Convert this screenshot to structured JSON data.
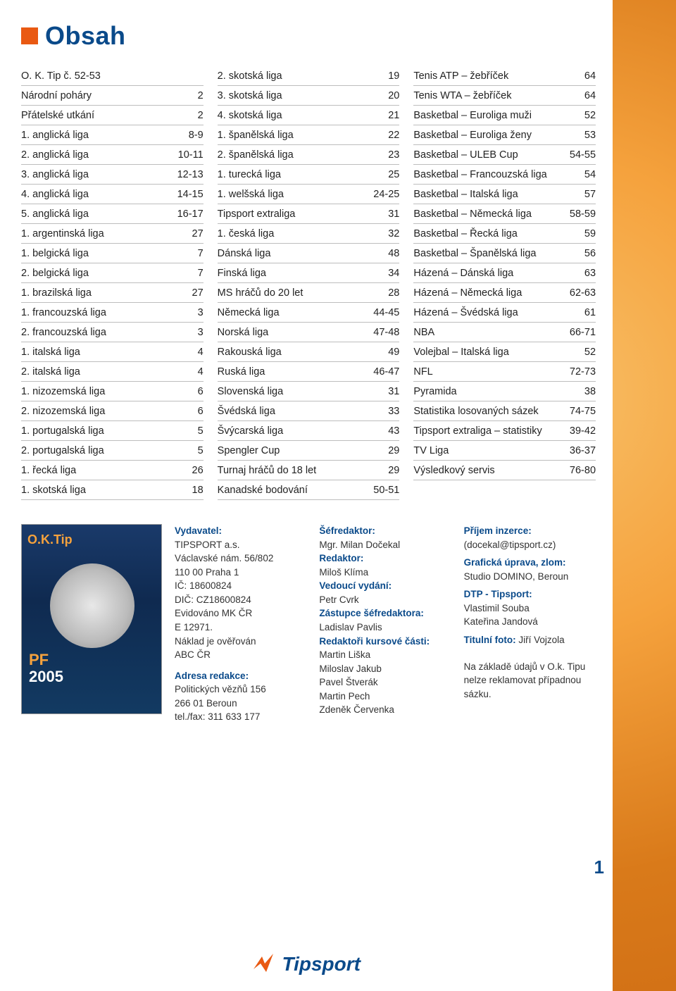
{
  "title": "Obsah",
  "columns": [
    [
      {
        "label": "O. K. Tip č. 52-53",
        "page": ""
      },
      {
        "label": "Národní poháry",
        "page": "2"
      },
      {
        "label": "Přátelské utkání",
        "page": "2"
      },
      {
        "label": "1. anglická liga",
        "page": "8-9"
      },
      {
        "label": "2. anglická liga",
        "page": "10-11"
      },
      {
        "label": "3. anglická liga",
        "page": "12-13"
      },
      {
        "label": "4. anglická liga",
        "page": "14-15"
      },
      {
        "label": "5. anglická liga",
        "page": "16-17"
      },
      {
        "label": "1. argentinská liga",
        "page": "27"
      },
      {
        "label": "1. belgická liga",
        "page": "7"
      },
      {
        "label": "2. belgická liga",
        "page": "7"
      },
      {
        "label": "1. brazilská liga",
        "page": "27"
      },
      {
        "label": "1. francouzská liga",
        "page": "3"
      },
      {
        "label": "2. francouzská liga",
        "page": "3"
      },
      {
        "label": "1. italská liga",
        "page": "4"
      },
      {
        "label": "2. italská liga",
        "page": "4"
      },
      {
        "label": "1. nizozemská liga",
        "page": "6"
      },
      {
        "label": "2. nizozemská liga",
        "page": "6"
      },
      {
        "label": "1. portugalská liga",
        "page": "5"
      },
      {
        "label": "2. portugalská liga",
        "page": "5"
      },
      {
        "label": "1. řecká liga",
        "page": "26"
      },
      {
        "label": "1. skotská liga",
        "page": "18"
      }
    ],
    [
      {
        "label": "2. skotská liga",
        "page": "19"
      },
      {
        "label": "3. skotská liga",
        "page": "20"
      },
      {
        "label": "4. skotská liga",
        "page": "21"
      },
      {
        "label": "1. španělská liga",
        "page": "22"
      },
      {
        "label": "2. španělská liga",
        "page": "23"
      },
      {
        "label": "1. turecká liga",
        "page": "25"
      },
      {
        "label": "1. welšská liga",
        "page": "24-25"
      },
      {
        "label": "Tipsport extraliga",
        "page": "31"
      },
      {
        "label": "1. česká liga",
        "page": "32"
      },
      {
        "label": "Dánská liga",
        "page": "48"
      },
      {
        "label": "Finská liga",
        "page": "34"
      },
      {
        "label": "MS hráčů do 20 let",
        "page": "28"
      },
      {
        "label": "Německá liga",
        "page": "44-45"
      },
      {
        "label": "Norská liga",
        "page": "47-48"
      },
      {
        "label": "Rakouská liga",
        "page": "49"
      },
      {
        "label": "Ruská liga",
        "page": "46-47"
      },
      {
        "label": "Slovenská liga",
        "page": "31"
      },
      {
        "label": "Švédská liga",
        "page": "33"
      },
      {
        "label": "Švýcarská liga",
        "page": "43"
      },
      {
        "label": "Spengler Cup",
        "page": "29"
      },
      {
        "label": "Turnaj hráčů do 18 let",
        "page": "29"
      },
      {
        "label": "Kanadské bodování",
        "page": "50-51"
      }
    ],
    [
      {
        "label": "Tenis ATP – žebříček",
        "page": "64"
      },
      {
        "label": "Tenis WTA – žebříček",
        "page": "64"
      },
      {
        "label": "Basketbal – Euroliga muži",
        "page": "52"
      },
      {
        "label": "Basketbal – Euroliga ženy",
        "page": "53"
      },
      {
        "label": "Basketbal – ULEB Cup",
        "page": "54-55"
      },
      {
        "label": "Basketbal – Francouzská liga",
        "page": "54"
      },
      {
        "label": "Basketbal – Italská liga",
        "page": "57"
      },
      {
        "label": "Basketbal – Německá liga",
        "page": "58-59"
      },
      {
        "label": "Basketbal – Řecká liga",
        "page": "59"
      },
      {
        "label": "Basketbal – Španělská liga",
        "page": "56"
      },
      {
        "label": "Házená – Dánská liga",
        "page": "63"
      },
      {
        "label": "Házená – Německá liga",
        "page": "62-63"
      },
      {
        "label": "Házená – Švédská liga",
        "page": "61"
      },
      {
        "label": "NBA",
        "page": "66-71"
      },
      {
        "label": "Volejbal – Italská liga",
        "page": "52"
      },
      {
        "label": "NFL",
        "page": "72-73"
      },
      {
        "label": "Pyramida",
        "page": "38"
      },
      {
        "label": "Statistika losovaných sázek",
        "page": "74-75"
      },
      {
        "label": "Tipsport extraliga – statistiky",
        "page": "39-42"
      },
      {
        "label": "TV Liga",
        "page": "36-37"
      },
      {
        "label": "Výsledkový servis",
        "page": "76-80"
      }
    ]
  ],
  "imprint": {
    "cover": {
      "brand": "O.K.Tip",
      "pf": "PF",
      "year": "2005"
    },
    "publisher": {
      "label": "Vydavatel:",
      "lines": [
        "TIPSPORT a.s.",
        "Václavské nám. 56/802",
        "110 00 Praha 1",
        "IČ: 18600824",
        "DIČ: CZ18600824",
        "Evidováno MK ČR",
        "   E 12971.",
        "Náklad je ověřován",
        "   ABC ČR"
      ]
    },
    "address": {
      "label": "Adresa redakce:",
      "lines": [
        "Politických vězňů 156",
        "266 01 Beroun",
        "tel./fax: 311 633 177"
      ]
    },
    "editor_in_chief": {
      "label": "Šéfredaktor:",
      "value": "Mgr. Milan Dočekal"
    },
    "editor": {
      "label": "Redaktor:",
      "value": "Miloš Klíma"
    },
    "issue_lead": {
      "label": "Vedoucí vydání:",
      "value": "Petr Cvrk"
    },
    "deputy": {
      "label": "Zástupce šéfredaktora:",
      "value": "Ladislav Pavlis"
    },
    "course_editors": {
      "label": "Redaktoři kursové části:",
      "lines": [
        "Martin Liška",
        "Miloslav Jakub",
        "Pavel Štverák",
        "Martin Pech",
        "Zdeněk Červenka"
      ]
    },
    "advertising": {
      "label": "Příjem inzerce:",
      "value": "(docekal@tipsport.cz)"
    },
    "graphics": {
      "label": "Grafická úprava, zlom:",
      "value": "Studio DOMINO, Beroun"
    },
    "dtp": {
      "label": "DTP - Tipsport:",
      "lines": [
        "Vlastimil Souba",
        "Kateřina Jandová"
      ]
    },
    "cover_photo": {
      "label": "Titulní foto:",
      "value": "Jiří Vojzola"
    },
    "disclaimer": "Na základě údajů v O.k. Tipu nelze rekla­movat případnou sázku."
  },
  "page_number": "1",
  "logo_text": "Tipsport",
  "colors": {
    "brand_blue": "#0a4a8a",
    "brand_orange": "#e95912",
    "row_border": "#bdbdbd",
    "bg_orange_light": "#f8c068",
    "bg_orange_mid": "#f5a23d",
    "bg_orange_dark": "#c96510"
  }
}
